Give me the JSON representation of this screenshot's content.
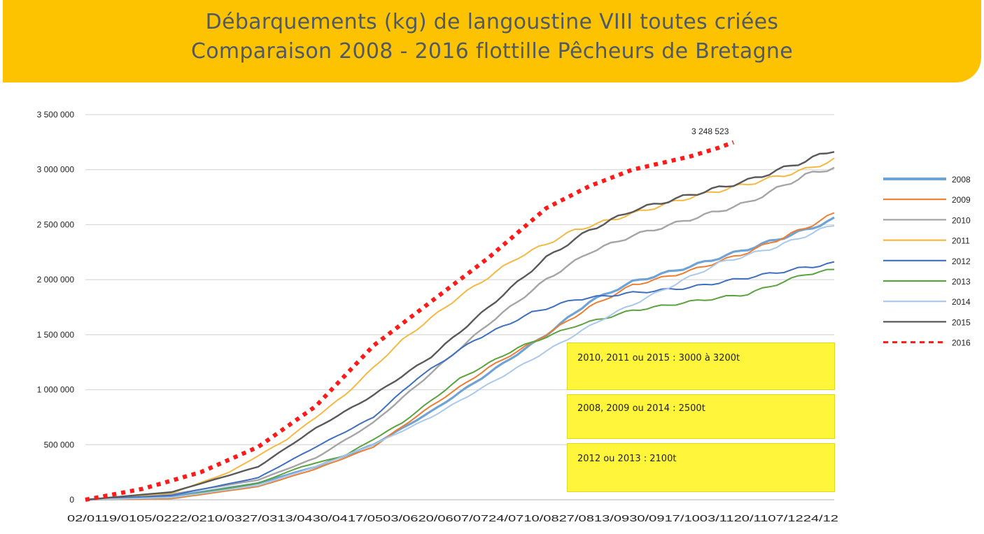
{
  "header": {
    "title_line1": "Débarquements (kg) de langoustine VIII toutes criées",
    "title_line2": "Comparaison 2008 - 2016 flottille Pêcheurs de Bretagne"
  },
  "annotations": {
    "peak_label": "3 248 523",
    "box1": "2010, 2011 ou 2015 : 3000 à 3200t",
    "box2": "2008, 2009 ou 2014 : 2500t",
    "box3": "2012 ou 2013 : 2100t"
  },
  "chart_data": {
    "type": "line",
    "title": "Débarquements (kg) de langoustine VIII toutes criées — Comparaison 2008 - 2016 flottille Pêcheurs de Bretagne",
    "xlabel": "",
    "ylabel": "",
    "ylim": [
      0,
      3500000
    ],
    "yticks": [
      0,
      500000,
      1000000,
      1500000,
      2000000,
      2500000,
      3000000,
      3500000
    ],
    "ytick_labels": [
      "0",
      "500 000",
      "1 000 000",
      "1 500 000",
      "2 000 000",
      "2 500 000",
      "3 000 000",
      "3 500 000"
    ],
    "x_axis_text": "02/0119/0105/0222/0210/0327/0313/0430/0417/0503/0620/0607/0724/0710/0827/0813/0930/0917/1003/1120/1107/1224/12",
    "grid": true,
    "legend_position": "right",
    "n_points": 53,
    "series": [
      {
        "name": "2008",
        "color": "#6fa3d6",
        "width": 3.2,
        "dash": "",
        "points": [
          [
            0,
            0
          ],
          [
            6,
            30000
          ],
          [
            12,
            150000
          ],
          [
            16,
            300000
          ],
          [
            20,
            500000
          ],
          [
            24,
            800000
          ],
          [
            28,
            1150000
          ],
          [
            32,
            1500000
          ],
          [
            35,
            1800000
          ],
          [
            38,
            1980000
          ],
          [
            42,
            2120000
          ],
          [
            46,
            2280000
          ],
          [
            50,
            2450000
          ],
          [
            52,
            2550000
          ]
        ]
      },
      {
        "name": "2009",
        "color": "#ed7d31",
        "width": 2,
        "dash": "",
        "points": [
          [
            0,
            0
          ],
          [
            6,
            10000
          ],
          [
            12,
            120000
          ],
          [
            16,
            280000
          ],
          [
            20,
            480000
          ],
          [
            24,
            850000
          ],
          [
            28,
            1200000
          ],
          [
            32,
            1500000
          ],
          [
            35,
            1750000
          ],
          [
            38,
            1950000
          ],
          [
            42,
            2080000
          ],
          [
            46,
            2250000
          ],
          [
            50,
            2470000
          ],
          [
            52,
            2600000
          ]
        ]
      },
      {
        "name": "2010",
        "color": "#a5a5a5",
        "width": 2.4,
        "dash": "",
        "points": [
          [
            0,
            0
          ],
          [
            6,
            50000
          ],
          [
            12,
            180000
          ],
          [
            16,
            380000
          ],
          [
            20,
            700000
          ],
          [
            24,
            1150000
          ],
          [
            28,
            1600000
          ],
          [
            32,
            2000000
          ],
          [
            35,
            2250000
          ],
          [
            38,
            2400000
          ],
          [
            42,
            2550000
          ],
          [
            46,
            2700000
          ],
          [
            50,
            2950000
          ],
          [
            52,
            3020000
          ]
        ]
      },
      {
        "name": "2011",
        "color": "#f4b942",
        "width": 2,
        "dash": "",
        "points": [
          [
            0,
            0
          ],
          [
            6,
            60000
          ],
          [
            10,
            250000
          ],
          [
            14,
            550000
          ],
          [
            18,
            950000
          ],
          [
            22,
            1450000
          ],
          [
            26,
            1850000
          ],
          [
            30,
            2200000
          ],
          [
            34,
            2450000
          ],
          [
            38,
            2600000
          ],
          [
            42,
            2750000
          ],
          [
            46,
            2870000
          ],
          [
            50,
            3000000
          ],
          [
            52,
            3090000
          ]
        ]
      },
      {
        "name": "2012",
        "color": "#3f6fbf",
        "width": 2,
        "dash": "",
        "points": [
          [
            0,
            0
          ],
          [
            6,
            40000
          ],
          [
            12,
            200000
          ],
          [
            16,
            480000
          ],
          [
            20,
            750000
          ],
          [
            23,
            1100000
          ],
          [
            27,
            1450000
          ],
          [
            31,
            1700000
          ],
          [
            34,
            1820000
          ],
          [
            38,
            1880000
          ],
          [
            42,
            1930000
          ],
          [
            46,
            2020000
          ],
          [
            50,
            2110000
          ],
          [
            52,
            2150000
          ]
        ]
      },
      {
        "name": "2013",
        "color": "#5aa33e",
        "width": 2,
        "dash": "",
        "points": [
          [
            0,
            0
          ],
          [
            6,
            20000
          ],
          [
            12,
            150000
          ],
          [
            15,
            300000
          ],
          [
            18,
            400000
          ],
          [
            22,
            700000
          ],
          [
            26,
            1100000
          ],
          [
            30,
            1380000
          ],
          [
            34,
            1580000
          ],
          [
            38,
            1720000
          ],
          [
            42,
            1800000
          ],
          [
            46,
            1870000
          ],
          [
            50,
            2050000
          ],
          [
            52,
            2090000
          ]
        ]
      },
      {
        "name": "2014",
        "color": "#a9c8ec",
        "width": 2,
        "dash": "",
        "points": [
          [
            0,
            0
          ],
          [
            6,
            20000
          ],
          [
            12,
            130000
          ],
          [
            16,
            300000
          ],
          [
            20,
            500000
          ],
          [
            24,
            750000
          ],
          [
            28,
            1050000
          ],
          [
            32,
            1350000
          ],
          [
            36,
            1650000
          ],
          [
            40,
            1900000
          ],
          [
            44,
            2150000
          ],
          [
            48,
            2300000
          ],
          [
            52,
            2500000
          ]
        ]
      },
      {
        "name": "2015",
        "color": "#595959",
        "width": 2.4,
        "dash": "",
        "points": [
          [
            0,
            0
          ],
          [
            6,
            70000
          ],
          [
            12,
            300000
          ],
          [
            16,
            650000
          ],
          [
            20,
            950000
          ],
          [
            24,
            1300000
          ],
          [
            28,
            1750000
          ],
          [
            32,
            2200000
          ],
          [
            35,
            2450000
          ],
          [
            38,
            2630000
          ],
          [
            42,
            2770000
          ],
          [
            46,
            2900000
          ],
          [
            50,
            3080000
          ],
          [
            52,
            3180000
          ]
        ]
      },
      {
        "name": "2016",
        "color": "#ff1a1a",
        "width": 6,
        "dash": "6 7",
        "points": [
          [
            0,
            0
          ],
          [
            4,
            100000
          ],
          [
            8,
            250000
          ],
          [
            12,
            480000
          ],
          [
            16,
            850000
          ],
          [
            20,
            1400000
          ],
          [
            24,
            1800000
          ],
          [
            28,
            2200000
          ],
          [
            32,
            2650000
          ],
          [
            35,
            2850000
          ],
          [
            38,
            3000000
          ],
          [
            42,
            3120000
          ],
          [
            44,
            3200000
          ],
          [
            45,
            3248523
          ]
        ]
      }
    ]
  }
}
